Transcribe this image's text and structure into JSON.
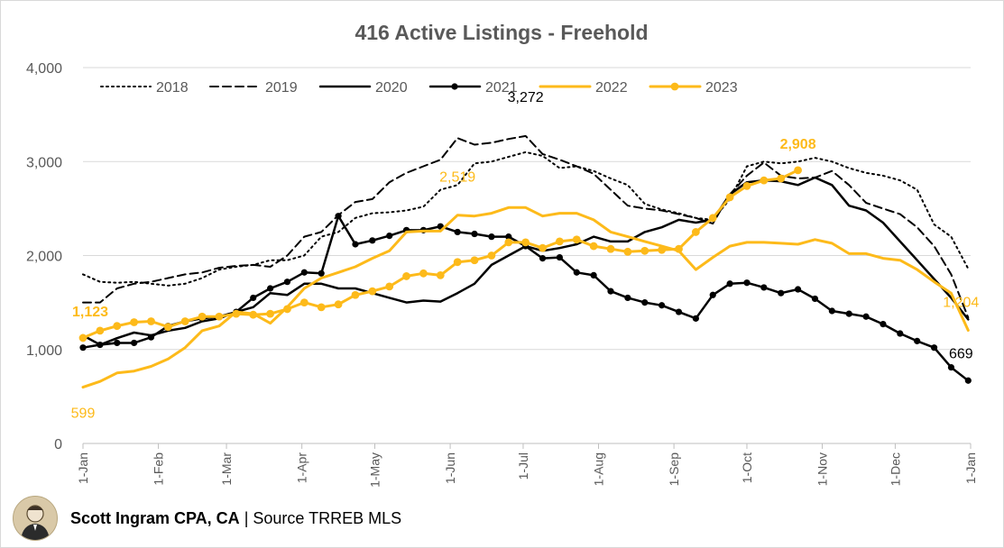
{
  "chart_data": {
    "type": "line",
    "title": "416 Active Listings - Freehold",
    "xlabel": "",
    "ylabel": "",
    "ylim": [
      0,
      4000
    ],
    "yticks": [
      0,
      1000,
      2000,
      3000,
      4000
    ],
    "ytick_labels": [
      "0",
      "1,000",
      "2,000",
      "3,000",
      "4,000"
    ],
    "x_unit": "day of year",
    "xlim": [
      1,
      366
    ],
    "xticks": [
      1,
      32,
      60,
      91,
      121,
      152,
      182,
      213,
      244,
      274,
      305,
      335,
      366
    ],
    "xtick_labels": [
      "1-Jan",
      "1-Feb",
      "1-Mar",
      "1-Apr",
      "1-May",
      "1-Jun",
      "1-Jul",
      "1-Aug",
      "1-Sep",
      "1-Oct",
      "1-Nov",
      "1-Dec",
      "1-Jan"
    ],
    "grid": "horizontal",
    "legend_position": "top",
    "series": [
      {
        "name": "2018",
        "color": "#000000",
        "style": "dotted",
        "width": 2,
        "markers": false,
        "x": [
          1,
          8,
          15,
          22,
          29,
          36,
          43,
          50,
          57,
          64,
          71,
          78,
          85,
          92,
          99,
          106,
          113,
          120,
          127,
          134,
          141,
          148,
          155,
          162,
          169,
          176,
          183,
          190,
          197,
          204,
          211,
          218,
          225,
          232,
          239,
          246,
          253,
          260,
          267,
          274,
          281,
          288,
          295,
          302,
          309,
          316,
          323,
          330,
          337,
          344,
          351,
          358,
          365
        ],
        "y": [
          1800,
          1720,
          1710,
          1720,
          1700,
          1680,
          1700,
          1760,
          1850,
          1880,
          1900,
          1950,
          1950,
          2000,
          2200,
          2250,
          2400,
          2450,
          2460,
          2480,
          2520,
          2700,
          2750,
          2980,
          3000,
          3050,
          3100,
          3060,
          2930,
          2950,
          2900,
          2820,
          2750,
          2550,
          2490,
          2450,
          2400,
          2380,
          2600,
          2950,
          3000,
          2980,
          3000,
          3040,
          3000,
          2930,
          2880,
          2850,
          2800,
          2700,
          2330,
          2200,
          1860
        ]
      },
      {
        "name": "2019",
        "color": "#000000",
        "style": "dashed",
        "width": 2,
        "markers": false,
        "x": [
          1,
          8,
          15,
          22,
          29,
          36,
          43,
          50,
          57,
          64,
          71,
          78,
          85,
          92,
          99,
          106,
          113,
          120,
          127,
          134,
          141,
          148,
          155,
          162,
          169,
          176,
          183,
          190,
          197,
          204,
          211,
          218,
          225,
          232,
          239,
          246,
          253,
          260,
          267,
          274,
          281,
          288,
          295,
          302,
          309,
          316,
          323,
          330,
          337,
          344,
          351,
          358,
          365
        ],
        "y": [
          1500,
          1500,
          1650,
          1700,
          1720,
          1760,
          1800,
          1820,
          1870,
          1890,
          1900,
          1880,
          2000,
          2200,
          2250,
          2430,
          2570,
          2600,
          2780,
          2880,
          2950,
          3020,
          3250,
          3180,
          3200,
          3240,
          3272,
          3080,
          3020,
          2950,
          2870,
          2700,
          2530,
          2500,
          2480,
          2440,
          2400,
          2340,
          2650,
          2850,
          2990,
          2850,
          2820,
          2830,
          2900,
          2750,
          2560,
          2500,
          2440,
          2300,
          2100,
          1800,
          1340
        ]
      },
      {
        "name": "2020",
        "color": "#000000",
        "style": "solid",
        "width": 2.5,
        "markers": false,
        "x": [
          1,
          8,
          15,
          22,
          29,
          36,
          43,
          50,
          57,
          64,
          71,
          78,
          85,
          92,
          99,
          106,
          113,
          120,
          127,
          134,
          141,
          148,
          155,
          162,
          169,
          176,
          183,
          190,
          197,
          204,
          211,
          218,
          225,
          232,
          239,
          246,
          253,
          260,
          267,
          274,
          281,
          288,
          295,
          302,
          309,
          316,
          323,
          330,
          337,
          344,
          351,
          358,
          365
        ],
        "y": [
          1150,
          1050,
          1120,
          1180,
          1150,
          1200,
          1230,
          1300,
          1330,
          1400,
          1450,
          1600,
          1580,
          1700,
          1700,
          1650,
          1650,
          1600,
          1550,
          1500,
          1520,
          1510,
          1600,
          1700,
          1900,
          2000,
          2100,
          2050,
          2080,
          2120,
          2200,
          2150,
          2150,
          2250,
          2300,
          2380,
          2350,
          2380,
          2650,
          2780,
          2800,
          2790,
          2750,
          2830,
          2750,
          2530,
          2480,
          2350,
          2150,
          1950,
          1750,
          1550,
          1320
        ]
      },
      {
        "name": "2021",
        "color": "#000000",
        "style": "solid",
        "width": 2.5,
        "markers": true,
        "x": [
          1,
          8,
          15,
          22,
          29,
          36,
          43,
          50,
          57,
          64,
          71,
          78,
          85,
          92,
          99,
          106,
          113,
          120,
          127,
          134,
          141,
          148,
          155,
          162,
          169,
          176,
          183,
          190,
          197,
          204,
          211,
          218,
          225,
          232,
          239,
          246,
          253,
          260,
          267,
          274,
          281,
          288,
          295,
          302,
          309,
          316,
          323,
          330,
          337,
          344,
          351,
          358,
          365
        ],
        "y": [
          1020,
          1050,
          1070,
          1070,
          1130,
          1250,
          1300,
          1330,
          1350,
          1400,
          1550,
          1650,
          1720,
          1820,
          1810,
          2420,
          2120,
          2160,
          2210,
          2270,
          2270,
          2310,
          2250,
          2230,
          2200,
          2200,
          2100,
          1970,
          1980,
          1820,
          1790,
          1620,
          1550,
          1500,
          1470,
          1400,
          1330,
          1580,
          1700,
          1710,
          1660,
          1600,
          1640,
          1540,
          1410,
          1380,
          1350,
          1270,
          1170,
          1090,
          1020,
          810,
          669
        ]
      },
      {
        "name": "2022",
        "color": "#fdba1a",
        "style": "solid",
        "width": 3,
        "markers": false,
        "x": [
          1,
          8,
          15,
          22,
          29,
          36,
          43,
          50,
          57,
          64,
          71,
          78,
          85,
          92,
          99,
          106,
          113,
          120,
          127,
          134,
          141,
          148,
          155,
          162,
          169,
          176,
          183,
          190,
          197,
          204,
          211,
          218,
          225,
          232,
          239,
          246,
          253,
          260,
          267,
          274,
          281,
          288,
          295,
          302,
          309,
          316,
          323,
          330,
          337,
          344,
          351,
          358,
          365
        ],
        "y": [
          599,
          660,
          750,
          770,
          820,
          900,
          1020,
          1200,
          1250,
          1400,
          1380,
          1280,
          1450,
          1650,
          1760,
          1820,
          1880,
          1970,
          2050,
          2250,
          2260,
          2260,
          2430,
          2420,
          2450,
          2510,
          2510,
          2420,
          2450,
          2450,
          2380,
          2250,
          2200,
          2150,
          2100,
          2050,
          1850,
          1980,
          2100,
          2140,
          2140,
          2130,
          2120,
          2170,
          2130,
          2020,
          2020,
          1970,
          1950,
          1850,
          1720,
          1600,
          1204
        ]
      },
      {
        "name": "2023",
        "color": "#fdba1a",
        "style": "solid",
        "width": 3,
        "markers": true,
        "x": [
          1,
          8,
          15,
          22,
          29,
          36,
          43,
          50,
          57,
          64,
          71,
          78,
          85,
          92,
          99,
          106,
          113,
          120,
          127,
          134,
          141,
          148,
          155,
          162,
          169,
          176,
          183,
          190,
          197,
          204,
          211,
          218,
          225,
          232,
          239,
          246,
          253,
          260,
          267,
          274,
          281,
          288,
          295
        ],
        "y": [
          1123,
          1200,
          1250,
          1290,
          1300,
          1240,
          1300,
          1350,
          1350,
          1380,
          1370,
          1380,
          1430,
          1500,
          1450,
          1480,
          1580,
          1620,
          1670,
          1780,
          1810,
          1790,
          1930,
          1950,
          2000,
          2140,
          2140,
          2080,
          2150,
          2170,
          2100,
          2070,
          2040,
          2050,
          2060,
          2070,
          2250,
          2400,
          2620,
          2740,
          2800,
          2820,
          2908
        ]
      }
    ],
    "annotations": [
      {
        "text": "3,272",
        "color": "#000000",
        "bold": false,
        "series": "2019",
        "x": 183,
        "y": 3272,
        "dx": 0,
        "dy": -38
      },
      {
        "text": "2,908",
        "color": "#fdba1a",
        "bold": true,
        "series": "2023",
        "x": 295,
        "y": 2908,
        "dx": 0,
        "dy": -24
      },
      {
        "text": "2,519",
        "color": "#fdba1a",
        "bold": false,
        "series": "2022",
        "x": 155,
        "y": 2519,
        "dx": 0,
        "dy": -28
      },
      {
        "text": "1,123",
        "color": "#fdba1a",
        "bold": true,
        "series": "2023",
        "x": 1,
        "y": 1123,
        "dx": 8,
        "dy": -24
      },
      {
        "text": "599",
        "color": "#fdba1a",
        "bold": false,
        "series": "2022",
        "x": 1,
        "y": 599,
        "dx": 0,
        "dy": 34
      },
      {
        "text": "1,204",
        "color": "#fdba1a",
        "bold": false,
        "series": "2022",
        "x": 365,
        "y": 1204,
        "dx": -8,
        "dy": -26
      },
      {
        "text": "669",
        "color": "#000000",
        "bold": false,
        "series": "2021",
        "x": 365,
        "y": 669,
        "dx": -8,
        "dy": -25
      }
    ]
  },
  "footer": {
    "author": "Scott Ingram CPA, CA",
    "separator": "|",
    "source": "Source TRREB MLS"
  },
  "colors": {
    "gold": "#fdba1a",
    "black": "#000000",
    "grid": "#d9d9d9",
    "axis_text": "#595959"
  }
}
